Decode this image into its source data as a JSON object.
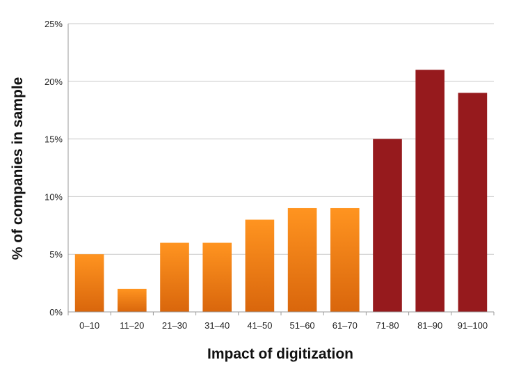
{
  "chart_data": {
    "type": "bar",
    "title": "",
    "xlabel": "Impact of digitization",
    "ylabel": "% of companies in sample",
    "categories": [
      "0–10",
      "11–20",
      "21–30",
      "31–40",
      "41–50",
      "51–60",
      "61–70",
      "71-80",
      "81–90",
      "91–100"
    ],
    "values": [
      5,
      2,
      6,
      6,
      8,
      9,
      9,
      15,
      21,
      19
    ],
    "value_unit": "%",
    "ylim": [
      0,
      25
    ],
    "yticks": [
      0,
      5,
      10,
      15,
      20,
      25
    ],
    "ytick_labels": [
      "0%",
      "5%",
      "10%",
      "15%",
      "20%",
      "25%"
    ],
    "grid": "horizontal",
    "legend": "none",
    "bar_groups": [
      {
        "categories": [
          "0–10",
          "11–20",
          "21–30",
          "31–40",
          "41–50",
          "51–60",
          "61–70"
        ],
        "color_top": "#ff9420",
        "color_bottom": "#d9660c"
      },
      {
        "categories": [
          "71-80",
          "81–90",
          "91–100"
        ],
        "color": "#961a1d"
      }
    ],
    "colors": {
      "grid": "#c8c8c8",
      "axis": "#9a9a9a"
    }
  }
}
